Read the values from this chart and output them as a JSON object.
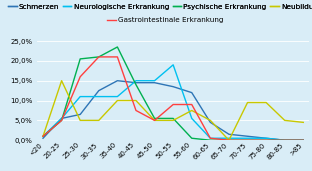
{
  "categories": [
    "<20",
    "20-25",
    "25-30",
    "30-35",
    "35-40",
    "40-45",
    "45-50",
    "50-55",
    "55-60",
    "60-65",
    "65-70",
    "70-75",
    "75-80",
    "80-85",
    ">85"
  ],
  "series": {
    "Schmerzen": [
      0.5,
      5.5,
      6.5,
      12.5,
      15.0,
      14.5,
      14.5,
      13.5,
      12.0,
      4.5,
      1.5,
      1.0,
      0.5,
      0.0,
      0.0
    ],
    "Neurologische Erkrankung": [
      1.0,
      5.5,
      11.0,
      11.0,
      11.0,
      15.0,
      15.0,
      19.0,
      5.5,
      0.5,
      0.5,
      0.5,
      0.5,
      0.0,
      0.0
    ],
    "Psychische Erkrankung": [
      1.0,
      5.0,
      20.5,
      21.0,
      23.5,
      14.0,
      5.5,
      5.5,
      0.5,
      0.0,
      0.0,
      0.0,
      0.0,
      0.0,
      0.0
    ],
    "Neubildung": [
      1.0,
      15.0,
      5.0,
      5.0,
      10.0,
      10.0,
      5.0,
      5.0,
      7.5,
      5.0,
      0.0,
      9.5,
      9.5,
      5.0,
      4.5
    ],
    "Gastrointestinale Erkrankung": [
      1.0,
      5.0,
      16.0,
      21.0,
      21.0,
      7.5,
      5.0,
      9.0,
      9.0,
      0.5,
      0.0,
      0.0,
      0.0,
      0.0,
      0.0
    ]
  },
  "colors": {
    "Schmerzen": "#2E75B6",
    "Neurologische Erkrankung": "#00C0F0",
    "Psychische Erkrankung": "#00B050",
    "Neubildung": "#C8C800",
    "Gastrointestinale Erkrankung": "#FF4040"
  },
  "ylim": [
    0,
    25
  ],
  "yticks": [
    0,
    5,
    10,
    15,
    20,
    25
  ],
  "background_color": "#D9EDF7",
  "legend_fontsize": 5.2,
  "axis_fontsize": 5.0,
  "title": ""
}
